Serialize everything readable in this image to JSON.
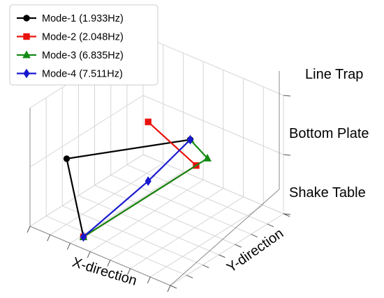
{
  "chart_data": {
    "type": "line3d",
    "xlabel": "X-direction",
    "ylabel": "Y-direction",
    "z_tick_labels": [
      "Shake Table",
      "Bottom Plate",
      "Line Trap"
    ],
    "legend": {
      "placement": "top-left"
    },
    "grid": true,
    "series": [
      {
        "name": "Mode-1 (1.933Hz)",
        "color": "#000000",
        "marker": "circle",
        "points": [
          {
            "x": 0.3,
            "y": 0.1,
            "z": 0
          },
          {
            "x": 0.1,
            "y": 0.2,
            "z": 1
          },
          {
            "x": 0.9,
            "y": 0.3,
            "z": 2
          }
        ]
      },
      {
        "name": "Mode-2 (2.048Hz)",
        "color": "#e8120c",
        "marker": "square",
        "points": [
          {
            "x": 0.3,
            "y": 0.1,
            "z": 0
          },
          {
            "x": 0.7,
            "y": 0.6,
            "z": 1
          },
          {
            "x": 0.6,
            "y": 0.3,
            "z": 2
          }
        ]
      },
      {
        "name": "Mode-3 (6.835Hz)",
        "color": "#138a13",
        "marker": "triangle",
        "points": [
          {
            "x": 0.3,
            "y": 0.1,
            "z": 0
          },
          {
            "x": 0.7,
            "y": 0.7,
            "z": 1
          },
          {
            "x": 0.9,
            "y": 0.3,
            "z": 2
          }
        ]
      },
      {
        "name": "Mode-4 (7.511Hz)",
        "color": "#1818d0",
        "marker": "diamond",
        "points": [
          {
            "x": 0.3,
            "y": 0.1,
            "z": 0
          },
          {
            "x": 0.6,
            "y": 0.3,
            "z": 1
          },
          {
            "x": 0.9,
            "y": 0.3,
            "z": 2
          }
        ]
      }
    ]
  }
}
